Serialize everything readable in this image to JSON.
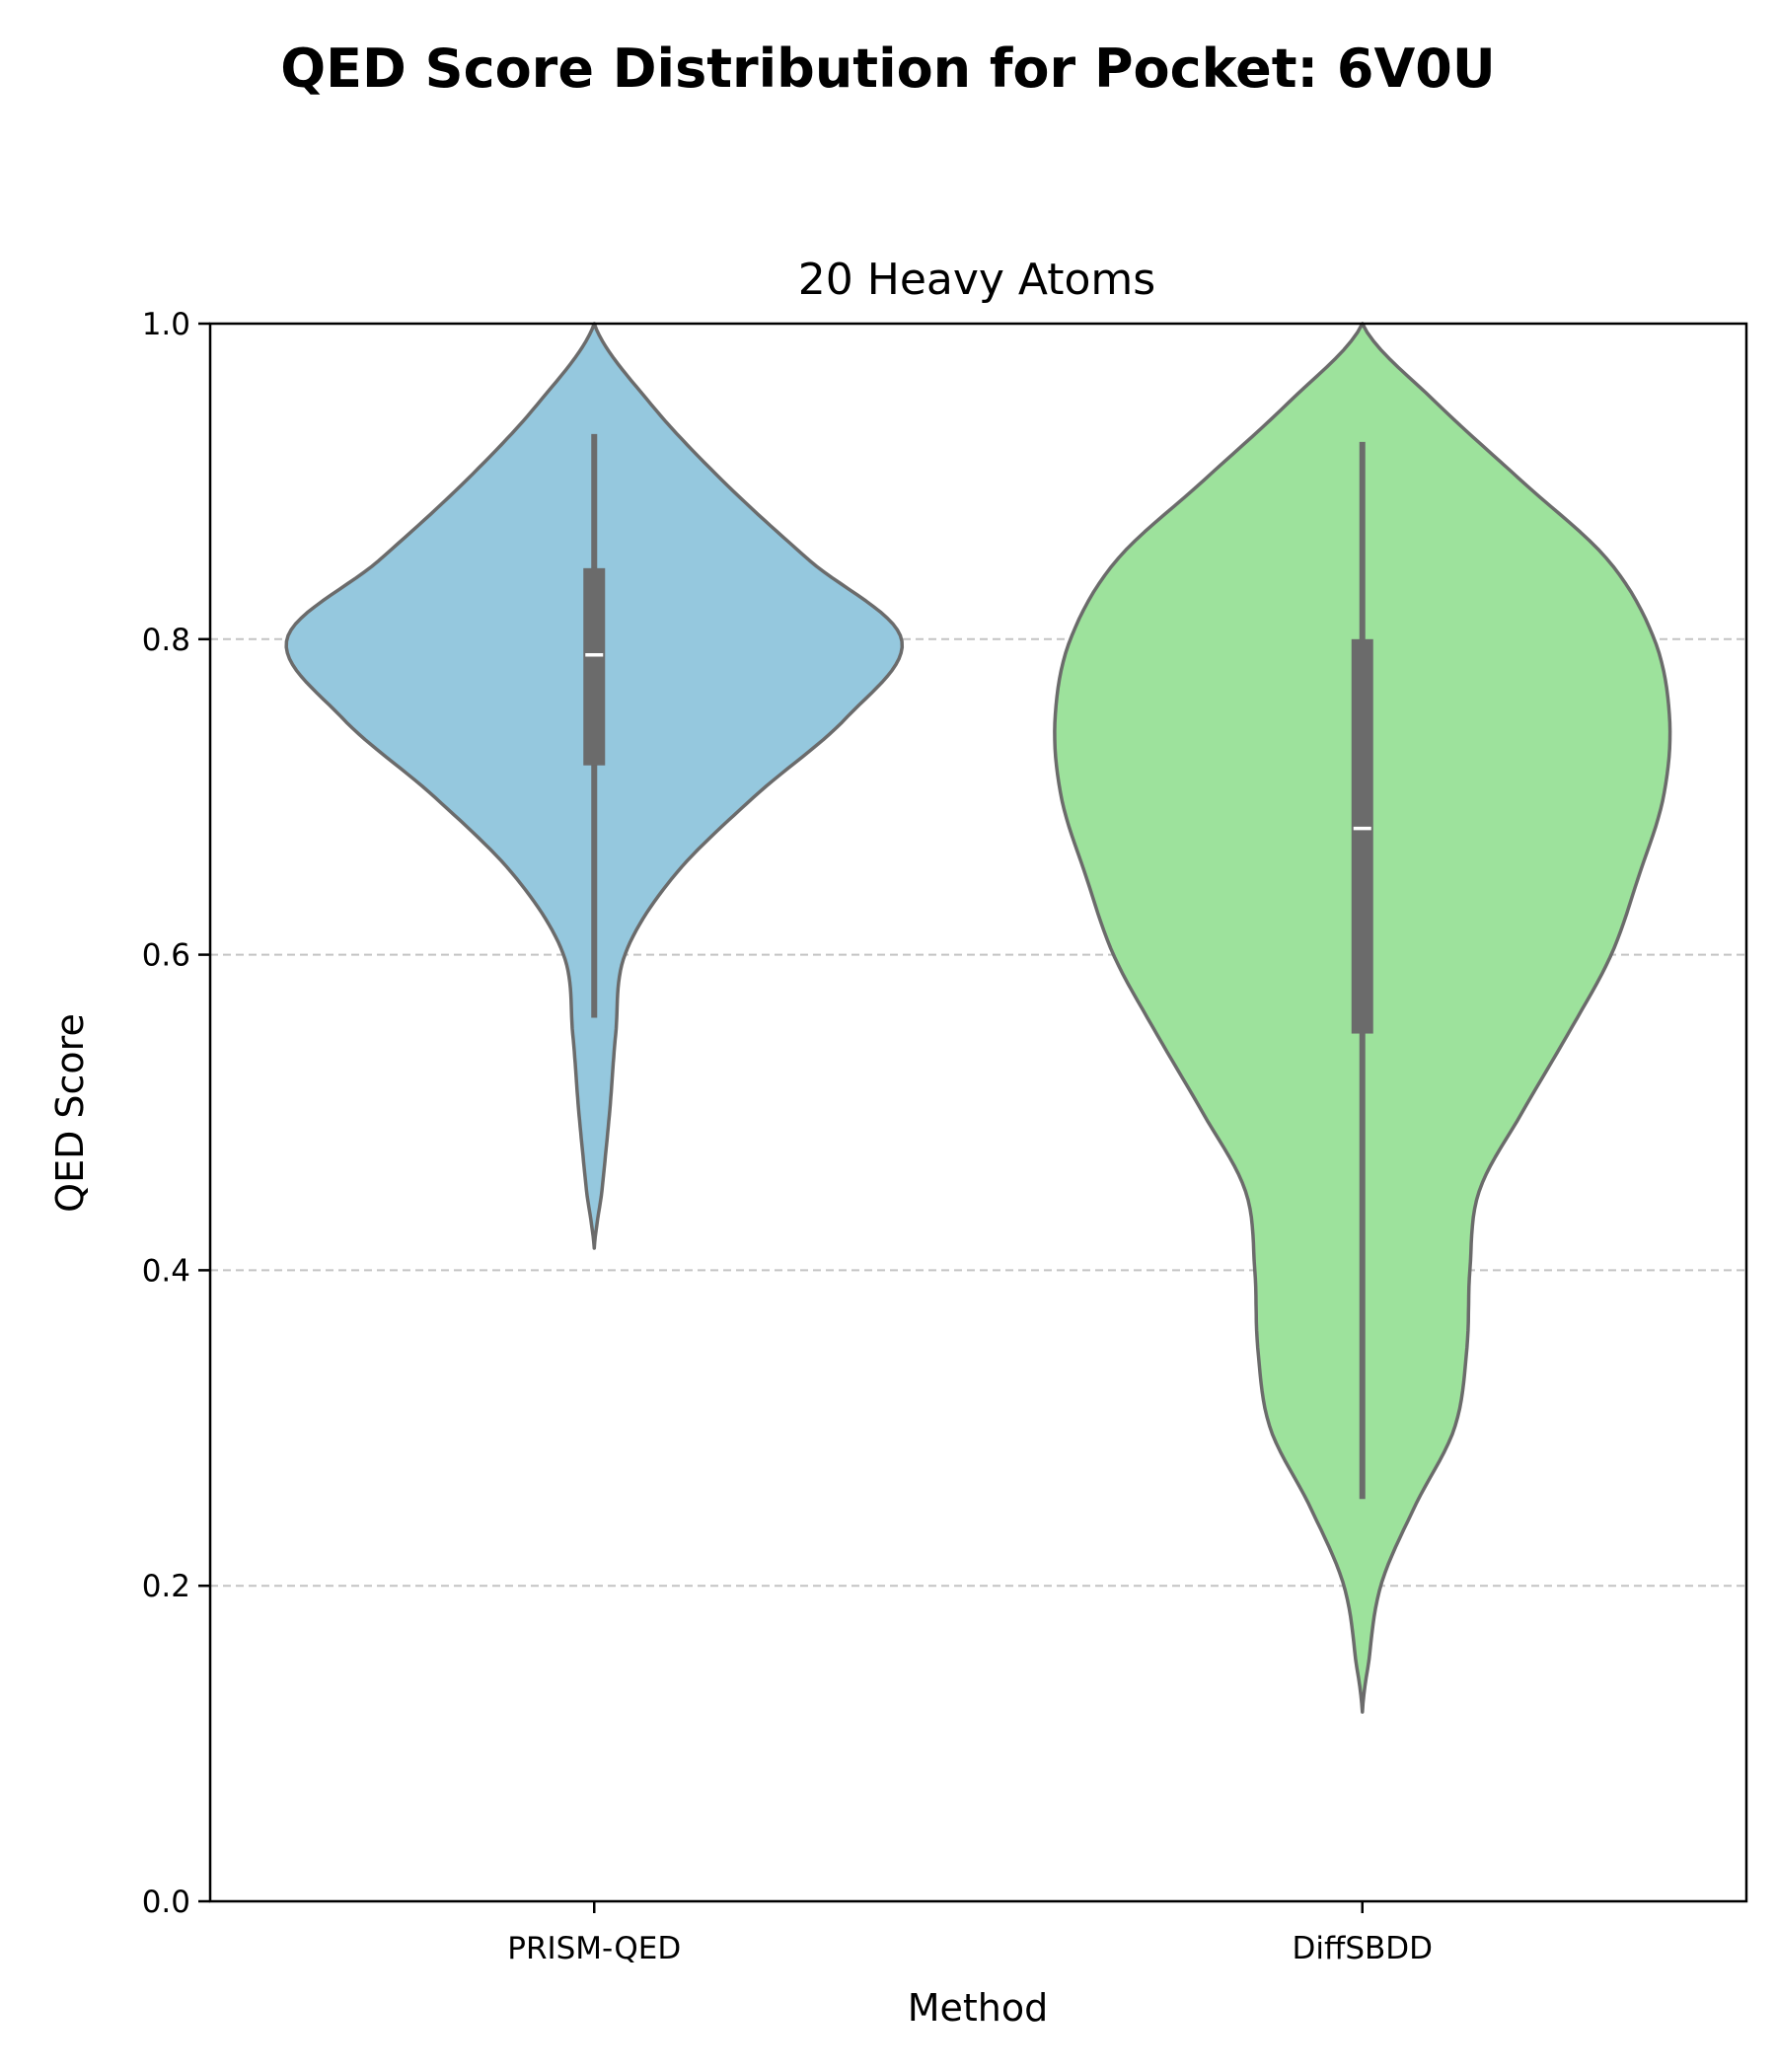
{
  "chart_data": {
    "type": "violin",
    "suptitle": "QED Score Distribution for Pocket: 6V0U",
    "title": "20 Heavy Atoms",
    "xlabel": "Method",
    "ylabel": "QED Score",
    "ylim": [
      0.0,
      1.0
    ],
    "yticks": [
      "0.0",
      "0.2",
      "0.4",
      "0.6",
      "0.8",
      "1.0"
    ],
    "grid": "y-dashed",
    "categories": [
      "PRISM-QED",
      "DiffSBDD"
    ],
    "colors": [
      "#95c8de",
      "#9de29c"
    ],
    "outline_color": "#6b6b6b",
    "series": [
      {
        "name": "PRISM-QED",
        "min": 0.56,
        "q1": 0.72,
        "median": 0.79,
        "q3": 0.845,
        "max": 0.93,
        "density": [
          [
            0.414,
            0.0
          ],
          [
            0.45,
            0.025
          ],
          [
            0.5,
            0.05
          ],
          [
            0.55,
            0.07
          ],
          [
            0.6,
            0.1
          ],
          [
            0.65,
            0.26
          ],
          [
            0.7,
            0.52
          ],
          [
            0.75,
            0.82
          ],
          [
            0.8,
            1.0
          ],
          [
            0.85,
            0.7
          ],
          [
            0.9,
            0.42
          ],
          [
            0.95,
            0.18
          ],
          [
            1.0,
            0.0
          ]
        ]
      },
      {
        "name": "DiffSBDD",
        "min": 0.255,
        "q1": 0.55,
        "median": 0.68,
        "q3": 0.8,
        "max": 0.925,
        "density": [
          [
            0.12,
            0.0
          ],
          [
            0.15,
            0.02
          ],
          [
            0.2,
            0.06
          ],
          [
            0.25,
            0.17
          ],
          [
            0.3,
            0.3
          ],
          [
            0.35,
            0.34
          ],
          [
            0.4,
            0.35
          ],
          [
            0.45,
            0.38
          ],
          [
            0.5,
            0.52
          ],
          [
            0.55,
            0.67
          ],
          [
            0.6,
            0.81
          ],
          [
            0.65,
            0.9
          ],
          [
            0.7,
            0.98
          ],
          [
            0.75,
            1.0
          ],
          [
            0.8,
            0.95
          ],
          [
            0.85,
            0.8
          ],
          [
            0.9,
            0.52
          ],
          [
            0.95,
            0.24
          ],
          [
            1.0,
            0.0
          ]
        ]
      }
    ]
  }
}
